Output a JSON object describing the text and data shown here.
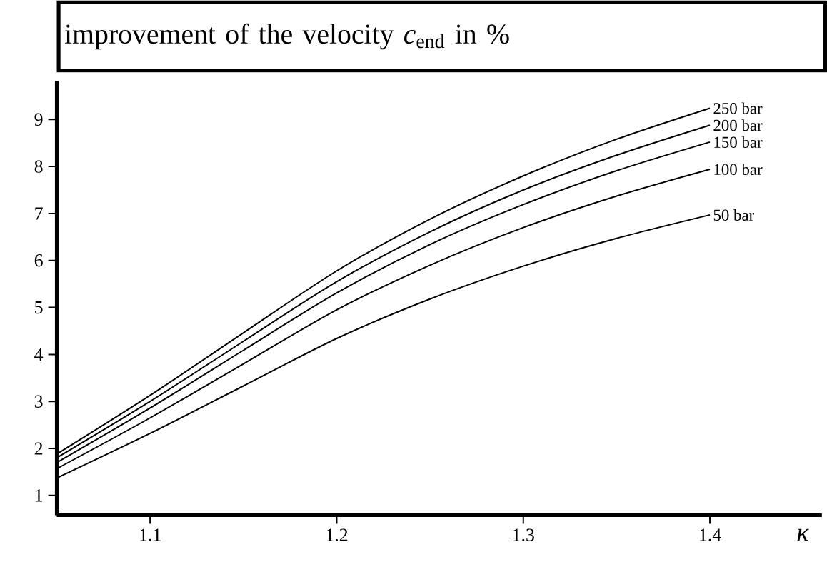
{
  "chart_data": {
    "type": "line",
    "title": "improvement of the velocity *c*$_{end}$ in %",
    "xlabel": "*κ*",
    "x": [
      1.05,
      1.1,
      1.15,
      1.2,
      1.25,
      1.3,
      1.35,
      1.4
    ],
    "series": [
      {
        "name": "250 bar",
        "color": "#000000",
        "values": [
          1.88,
          3.13,
          4.46,
          5.78,
          6.88,
          7.8,
          8.58,
          9.24
        ]
      },
      {
        "name": "200 bar",
        "color": "#000000",
        "values": [
          1.8,
          3.0,
          4.28,
          5.55,
          6.61,
          7.5,
          8.24,
          8.88
        ]
      },
      {
        "name": "150 bar",
        "color": "#000000",
        "values": [
          1.7,
          2.86,
          4.09,
          5.31,
          6.34,
          7.19,
          7.91,
          8.52
        ]
      },
      {
        "name": "100 bar",
        "color": "#000000",
        "values": [
          1.57,
          2.65,
          3.8,
          4.95,
          5.9,
          6.7,
          7.37,
          7.94
        ]
      },
      {
        "name": "50 bar",
        "color": "#000000",
        "values": [
          1.37,
          2.32,
          3.33,
          4.34,
          5.18,
          5.88,
          6.47,
          6.97
        ]
      }
    ],
    "xlim": [
      1.05,
      1.46
    ],
    "ylim": [
      0.58,
      9.82
    ],
    "xticks": [
      1.1,
      1.2,
      1.3,
      1.4
    ],
    "yticks": [
      1,
      2,
      3,
      4,
      5,
      6,
      7,
      8,
      9
    ]
  }
}
